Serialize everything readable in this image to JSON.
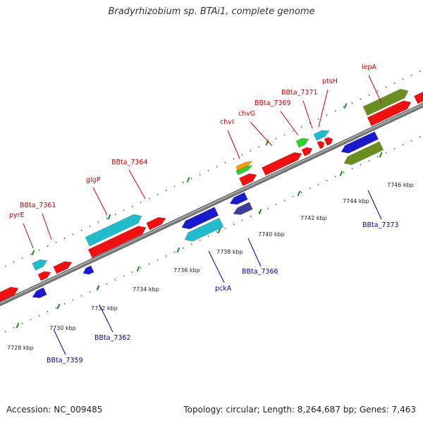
{
  "title": "Bradyrhizobium sp. BTAi1, complete genome",
  "accession": "Accession: NC_009485",
  "summary": "Topology: circular; Length: 8,264,687 bp; Genes: 7,463",
  "colors": {
    "forward_label": "#cc0000",
    "reverse_label": "#0000aa",
    "red_gene": "#ee1111",
    "blue_gene": "#1a1acc",
    "cyan_gene": "#22bbcc",
    "olive_gene": "#6b8e23",
    "green_gene": "#33cc33",
    "orange_gene": "#ff9900",
    "navy_gene": "#3d3d99",
    "tick_green": "#1f8a1f",
    "backbone": "#808080"
  },
  "scale_labels": [
    "7728 kbp",
    "7730 kbp",
    "7732 kbp",
    "7734 kbp",
    "7736 kbp",
    "7738 kbp",
    "7740 kbp",
    "7742 kbp",
    "7744 kbp",
    "7746 kbp"
  ],
  "forward_gene_labels": [
    "pyrE",
    "BBta_7361",
    "glgP",
    "BBta_7364",
    "chvI",
    "chvG",
    "BBta_7369",
    "BBta_7371",
    "ptsH",
    "lepA"
  ],
  "reverse_gene_labels": [
    "BBta_7359",
    "BBta_7362",
    "pckA",
    "BBta_7366",
    "BBta_7373"
  ]
}
